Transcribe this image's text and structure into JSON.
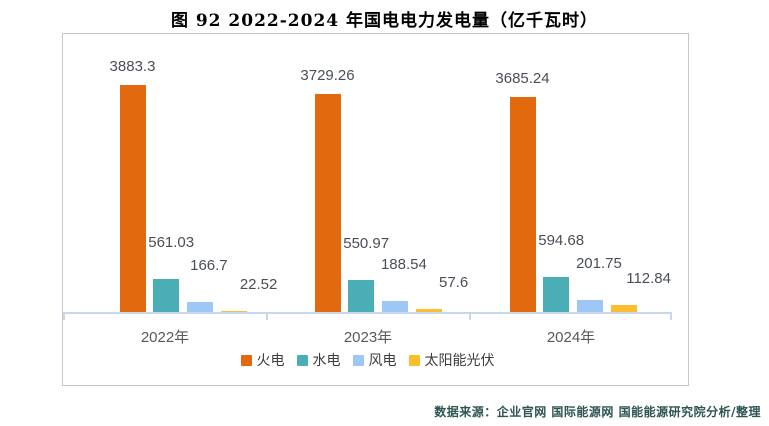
{
  "title": "图 92 2022-2024 年国电电力发电量（亿千瓦时）",
  "source_note": "数据来源：企业官网 国际能源网 国能能源研究院分析/整理",
  "chart_data": {
    "type": "bar",
    "title": "图 92 2022-2024 年国电电力发电量（亿千瓦时）",
    "categories": [
      "2022年",
      "2023年",
      "2024年"
    ],
    "series": [
      {
        "name": "火电",
        "color": "#e2690e",
        "values": [
          3883.3,
          3729.26,
          3685.24
        ]
      },
      {
        "name": "水电",
        "color": "#4badb5",
        "values": [
          561.03,
          550.97,
          594.68
        ]
      },
      {
        "name": "风电",
        "color": "#9dc8f6",
        "values": [
          166.7,
          188.54,
          201.75
        ]
      },
      {
        "name": "太阳能光伏",
        "color": "#fbbf2c",
        "values": [
          22.52,
          57.6,
          112.84
        ]
      }
    ],
    "legend": [
      "火电",
      "水电",
      "风电",
      "太阳能光伏"
    ],
    "legend_position": "bottom",
    "data_labels": true,
    "grid": false,
    "y_axis_visible": false,
    "ylim": [
      0,
      4790
    ],
    "colors": {
      "axis_line": "#c7d7f0",
      "plot_border": "#c6c6c6",
      "value_label": "#4a4f57",
      "category_label": "#595959",
      "legend_label": "#3d3d3d",
      "title": "#000000",
      "source_note": "#2e5552"
    }
  }
}
